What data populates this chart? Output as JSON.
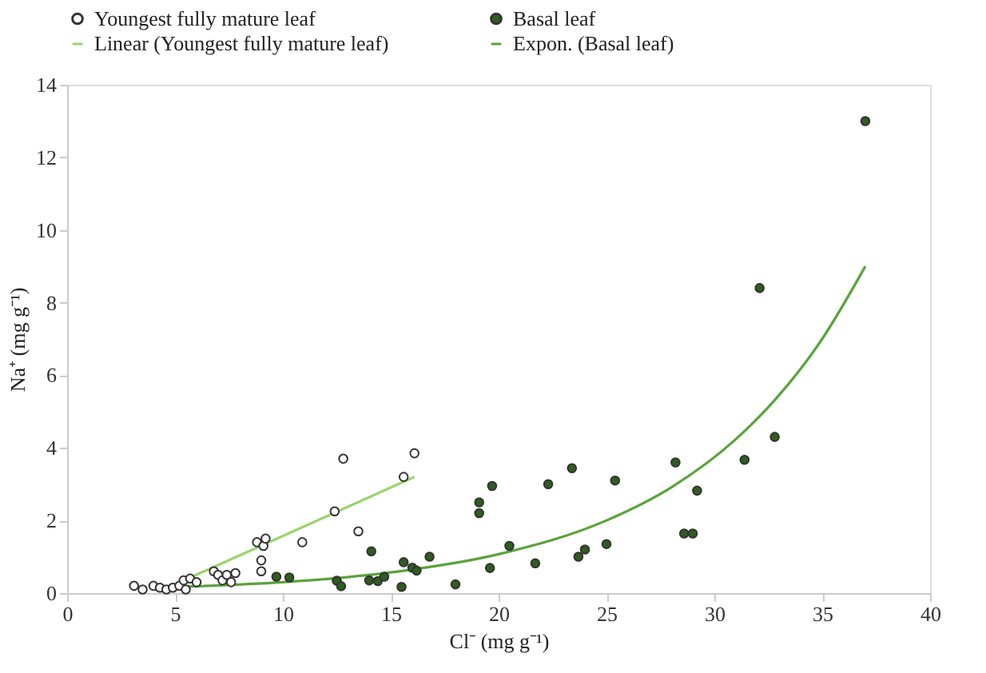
{
  "chart_data": {
    "type": "scatter",
    "xlabel": "Cl⁻ (mg g⁻¹)",
    "ylabel": "Na⁺ (mg g⁻¹)",
    "xlim": [
      0,
      40
    ],
    "ylim": [
      0,
      14
    ],
    "xticks": [
      0,
      5,
      10,
      15,
      20,
      25,
      30,
      35,
      40
    ],
    "yticks": [
      0,
      2,
      4,
      6,
      8,
      10,
      12,
      14
    ],
    "grid": false,
    "legend": "top",
    "marker": "circle",
    "series": [
      {
        "name": "Youngest fully mature leaf",
        "color": "#ffffff",
        "x": [
          3.1,
          3.5,
          4.0,
          4.3,
          4.6,
          4.9,
          5.2,
          5.4,
          5.5,
          5.7,
          6.0,
          6.8,
          7.0,
          7.2,
          7.4,
          7.6,
          7.8,
          8.8,
          9.0,
          9.0,
          9.1,
          9.2,
          10.9,
          12.4,
          12.8,
          13.5,
          15.6,
          16.1
        ],
        "values": [
          0.2,
          0.1,
          0.2,
          0.15,
          0.1,
          0.15,
          0.2,
          0.35,
          0.1,
          0.4,
          0.3,
          0.6,
          0.5,
          0.35,
          0.5,
          0.3,
          0.55,
          1.4,
          0.9,
          0.6,
          1.3,
          1.5,
          1.4,
          2.25,
          3.7,
          1.7,
          3.2,
          3.85
        ]
      },
      {
        "name": "Basal leaf",
        "color": "#2e5e1e",
        "x": [
          9.7,
          10.3,
          12.5,
          12.7,
          14.1,
          14.0,
          14.4,
          14.7,
          15.6,
          15.5,
          16.0,
          16.2,
          16.8,
          18.0,
          19.1,
          19.1,
          19.7,
          19.6,
          20.5,
          21.7,
          22.3,
          23.4,
          23.7,
          24.0,
          25.0,
          25.4,
          28.2,
          28.6,
          29.0,
          29.2,
          31.4,
          32.8,
          32.1,
          37.0
        ],
        "values": [
          0.45,
          0.43,
          0.34,
          0.19,
          1.15,
          0.35,
          0.33,
          0.45,
          0.85,
          0.17,
          0.7,
          0.62,
          1.0,
          0.24,
          2.5,
          2.2,
          2.95,
          0.69,
          1.3,
          0.82,
          3.0,
          3.44,
          1.0,
          1.2,
          1.35,
          3.1,
          3.6,
          1.64,
          1.64,
          2.82,
          3.67,
          4.3,
          8.4,
          13.0
        ]
      },
      {
        "name": "Linear (Youngest fully mature leaf)",
        "type": "line",
        "marker": "none",
        "color": "#9ad46e",
        "x": [
          5.6,
          16.1
        ],
        "values": [
          0.4,
          3.2
        ]
      },
      {
        "name": "Expon. (Basal leaf)",
        "type": "line",
        "marker": "none",
        "color": "#5aa33c",
        "x": [
          5.6,
          10,
          15,
          20,
          25,
          28,
          31,
          33,
          35,
          37
        ],
        "values": [
          0.18,
          0.3,
          0.57,
          1.07,
          2.0,
          2.91,
          4.24,
          5.45,
          7.0,
          9.0
        ]
      }
    ]
  }
}
